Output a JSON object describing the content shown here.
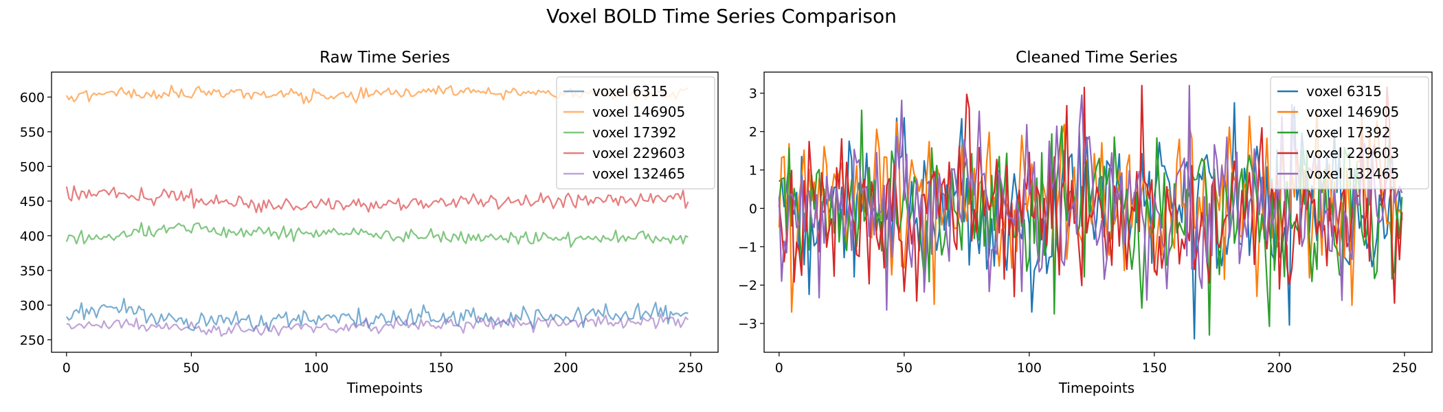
{
  "suptitle": "Voxel BOLD Time Series Comparison",
  "chart_data": [
    {
      "type": "line",
      "title": "Raw Time Series",
      "xlabel": "Timepoints",
      "ylabel": "",
      "xlim": [
        -6,
        261
      ],
      "ylim": [
        232,
        636
      ],
      "xticks": [
        0,
        50,
        100,
        150,
        200,
        250
      ],
      "yticks": [
        250,
        300,
        350,
        400,
        450,
        500,
        550,
        600
      ],
      "grid": false,
      "legend": "top-right",
      "series_alpha": 0.6,
      "n_timepoints": 250,
      "series": [
        {
          "name": "voxel 6315",
          "color": "#1f77b4",
          "mean": 280,
          "amplitude": 7,
          "key_points": [
            [
              0,
              286
            ],
            [
              10,
              292
            ],
            [
              20,
              295
            ],
            [
              30,
              285
            ],
            [
              50,
              274
            ],
            [
              100,
              279
            ],
            [
              150,
              281
            ],
            [
              200,
              282
            ],
            [
              249,
              290
            ]
          ]
        },
        {
          "name": "voxel 146905",
          "color": "#ff7f0e",
          "mean": 604,
          "amplitude": 5,
          "key_points": [
            [
              0,
              602
            ],
            [
              45,
              607
            ],
            [
              100,
              603
            ],
            [
              160,
              608
            ],
            [
              200,
              605
            ],
            [
              249,
              606
            ]
          ]
        },
        {
          "name": "voxel 17392",
          "color": "#2ca02c",
          "mean": 402,
          "amplitude": 6,
          "key_points": [
            [
              0,
              400
            ],
            [
              10,
              396
            ],
            [
              40,
              411
            ],
            [
              60,
              407
            ],
            [
              100,
              403
            ],
            [
              150,
              398
            ],
            [
              200,
              398
            ],
            [
              249,
              396
            ]
          ]
        },
        {
          "name": "voxel 229603",
          "color": "#d62728",
          "mean": 452,
          "amplitude": 6,
          "key_points": [
            [
              0,
              463
            ],
            [
              20,
              459
            ],
            [
              40,
              455
            ],
            [
              60,
              447
            ],
            [
              100,
              444
            ],
            [
              150,
              448
            ],
            [
              200,
              452
            ],
            [
              249,
              455
            ]
          ]
        },
        {
          "name": "voxel 132465",
          "color": "#9467bd",
          "mean": 272,
          "amplitude": 5,
          "key_points": [
            [
              0,
              268
            ],
            [
              20,
              273
            ],
            [
              50,
              268
            ],
            [
              70,
              263
            ],
            [
              100,
              268
            ],
            [
              150,
              272
            ],
            [
              200,
              274
            ],
            [
              249,
              277
            ]
          ]
        }
      ]
    },
    {
      "type": "line",
      "title": "Cleaned Time Series",
      "xlabel": "Timepoints",
      "ylabel": "",
      "xlim": [
        -6,
        261
      ],
      "ylim": [
        -3.75,
        3.55
      ],
      "xticks": [
        0,
        50,
        100,
        150,
        200,
        250
      ],
      "yticks": [
        -3,
        -2,
        -1,
        0,
        1,
        2,
        3
      ],
      "grid": false,
      "legend": "top-right",
      "series_alpha": 1.0,
      "n_timepoints": 250,
      "range": [
        -3.4,
        3.2
      ],
      "series": [
        {
          "name": "voxel 6315",
          "color": "#1f77b4",
          "std": 1.0,
          "key_points": [
            [
              0,
              0.7
            ],
            [
              47,
              2.35
            ],
            [
              120,
              2.0
            ],
            [
              166,
              -3.4
            ],
            [
              182,
              2.75
            ],
            [
              249,
              -0.3
            ]
          ]
        },
        {
          "name": "voxel 146905",
          "color": "#ff7f0e",
          "std": 1.0,
          "key_points": [
            [
              0,
              -0.5
            ],
            [
              62,
              -2.5
            ],
            [
              188,
              2.4
            ],
            [
              215,
              2.6
            ],
            [
              233,
              2.4
            ],
            [
              249,
              -0.2
            ]
          ]
        },
        {
          "name": "voxel 17392",
          "color": "#2ca02c",
          "std": 1.0,
          "key_points": [
            [
              0,
              0.2
            ],
            [
              110,
              -2.75
            ],
            [
              145,
              -2.6
            ],
            [
              172,
              -3.3
            ],
            [
              249,
              0.3
            ]
          ]
        },
        {
          "name": "voxel 229603",
          "color": "#d62728",
          "std": 1.0,
          "key_points": [
            [
              0,
              0.1
            ],
            [
              76,
              2.6
            ],
            [
              94,
              -2.3
            ],
            [
              122,
              3.15
            ],
            [
              200,
              -2.1
            ],
            [
              249,
              -0.1
            ]
          ]
        },
        {
          "name": "voxel 132465",
          "color": "#9467bd",
          "std": 1.0,
          "key_points": [
            [
              0,
              0.3
            ],
            [
              43,
              -2.65
            ],
            [
              121,
              2.95
            ],
            [
              164,
              3.2
            ],
            [
              208,
              0.5
            ],
            [
              249,
              0.4
            ]
          ]
        }
      ]
    }
  ]
}
